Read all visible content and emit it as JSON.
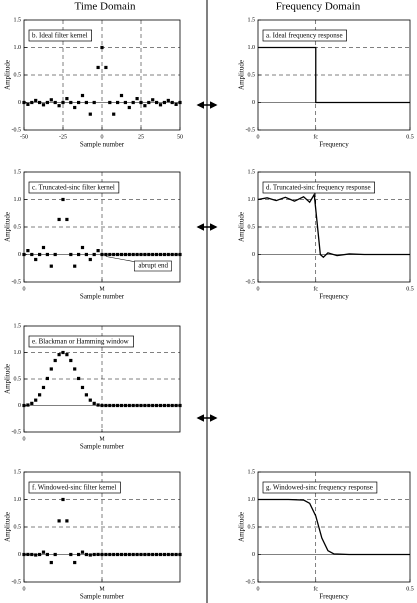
{
  "header": {
    "left": "Time Domain",
    "right": "Frequency Domain"
  },
  "chart_data": [
    {
      "type": "scatter",
      "title": "b. Ideal filter kernel",
      "xlabel": "Sample number",
      "ylabel": "Amplitude",
      "x": [
        -50,
        -47.5,
        -45,
        -42.5,
        -40,
        -37.5,
        -35,
        -32.5,
        -30,
        -27.5,
        -25,
        -22.5,
        -20,
        -17.5,
        -15,
        -12.5,
        -10,
        -7.5,
        -5,
        -2.5,
        0,
        2.5,
        5,
        7.5,
        10,
        12.5,
        15,
        17.5,
        20,
        22.5,
        25,
        27.5,
        30,
        32.5,
        35,
        37.5,
        40,
        42.5,
        45,
        47.5,
        50
      ],
      "values": [
        0,
        -0.034,
        0,
        0.037,
        0,
        -0.042,
        0,
        0.049,
        0,
        -0.058,
        0,
        0.071,
        0,
        -0.091,
        0,
        0.127,
        0,
        -0.212,
        0,
        0.637,
        1,
        0.637,
        0,
        -0.212,
        0,
        0.127,
        0,
        -0.091,
        0,
        0.071,
        0,
        -0.058,
        0,
        0.049,
        0,
        -0.042,
        0,
        0.037,
        0,
        -0.034,
        0
      ],
      "xlim": [
        -50,
        50
      ],
      "ylim": [
        -0.5,
        1.5
      ],
      "xticks": [
        -50,
        -25,
        0,
        25,
        50
      ],
      "yticks": [
        -0.5,
        0,
        0.5,
        {
          "value": 1,
          "label": "1.0"
        },
        1.5
      ],
      "grid": true,
      "color": "#000000"
    },
    {
      "type": "line",
      "title": "a. Ideal frequency response",
      "xlabel": "Frequency",
      "ylabel": "Amplitude",
      "x": [
        0,
        0.19,
        0.19,
        0.5
      ],
      "values": [
        1,
        1,
        0,
        0
      ],
      "xlim": [
        0,
        0.5
      ],
      "ylim": [
        -0.5,
        1.5
      ],
      "xticks": [
        0,
        {
          "value": 0.19,
          "label": "fc"
        },
        0.5
      ],
      "yticks": [
        -0.5,
        0,
        0.5,
        {
          "value": 1,
          "label": "1.0"
        },
        1.5
      ],
      "grid": true,
      "color": "#000000"
    },
    {
      "type": "scatter",
      "title": "c. Truncated-sinc filter kernel",
      "xlabel": "Sample number",
      "ylabel": "Amplitude",
      "annotation": "abrupt end",
      "x": [
        0,
        2.5,
        5,
        7.5,
        10,
        12.5,
        15,
        17.5,
        20,
        22.5,
        25,
        27.5,
        30,
        32.5,
        35,
        37.5,
        40,
        42.5,
        45,
        47.5,
        50,
        52.5,
        55,
        57.5,
        60,
        62.5,
        65,
        67.5,
        70,
        72.5,
        75,
        77.5,
        80,
        82.5,
        85,
        87.5,
        90,
        92.5,
        95,
        97.5,
        100
      ],
      "values": [
        0,
        0.071,
        0,
        -0.091,
        0,
        0.127,
        0,
        -0.212,
        0,
        0.637,
        1,
        0.637,
        0,
        -0.212,
        0,
        0.127,
        0,
        -0.091,
        0,
        0.071,
        0,
        0,
        0,
        0,
        0,
        0,
        0,
        0,
        0,
        0,
        0,
        0,
        0,
        0,
        0,
        0,
        0,
        0,
        0,
        0,
        0
      ],
      "xlim": [
        0,
        100
      ],
      "ylim": [
        -0.5,
        1.5
      ],
      "xticks": [
        0,
        {
          "value": 50,
          "label": "M"
        }
      ],
      "yticks": [
        -0.5,
        0,
        0.5,
        {
          "value": 1,
          "label": "1.0"
        },
        1.5
      ],
      "grid": true,
      "color": "#000000"
    },
    {
      "type": "line",
      "title": "d. Truncated-sinc frequency response",
      "xlabel": "Frequency",
      "ylabel": "Amplitude",
      "x": [
        0,
        0.03,
        0.06,
        0.09,
        0.12,
        0.15,
        0.17,
        0.185,
        0.195,
        0.205,
        0.215,
        0.23,
        0.26,
        0.3,
        0.35,
        0.4,
        0.45,
        0.5
      ],
      "values": [
        1,
        1.03,
        0.98,
        1.04,
        0.97,
        1.05,
        0.95,
        1.09,
        0.55,
        0,
        -0.05,
        0.03,
        -0.02,
        0.01,
        0,
        0,
        0,
        0
      ],
      "xlim": [
        0,
        0.5
      ],
      "ylim": [
        -0.5,
        1.5
      ],
      "xticks": [
        0,
        {
          "value": 0.19,
          "label": "fc"
        },
        0.5
      ],
      "yticks": [
        -0.5,
        0,
        0.5,
        {
          "value": 1,
          "label": "1.0"
        },
        1.5
      ],
      "grid": true,
      "color": "#000000"
    },
    {
      "type": "scatter",
      "title": "e. Blackman or Hamming window",
      "xlabel": "Sample number",
      "ylabel": "Amplitude",
      "x": [
        0,
        2.5,
        5,
        7.5,
        10,
        12.5,
        15,
        17.5,
        20,
        22.5,
        25,
        27.5,
        30,
        32.5,
        35,
        37.5,
        40,
        42.5,
        45,
        47.5,
        50,
        52.5,
        55,
        57.5,
        60,
        62.5,
        65,
        67.5,
        70,
        72.5,
        75,
        77.5,
        80,
        82.5,
        85,
        87.5,
        90,
        92.5,
        95,
        97.5,
        100
      ],
      "values": [
        0,
        0.009,
        0.04,
        0.101,
        0.201,
        0.34,
        0.51,
        0.689,
        0.849,
        0.96,
        1,
        0.96,
        0.849,
        0.689,
        0.51,
        0.34,
        0.201,
        0.101,
        0.04,
        0.009,
        0,
        0,
        0,
        0,
        0,
        0,
        0,
        0,
        0,
        0,
        0,
        0,
        0,
        0,
        0,
        0,
        0,
        0,
        0,
        0,
        0
      ],
      "xlim": [
        0,
        100
      ],
      "ylim": [
        -0.5,
        1.5
      ],
      "xticks": [
        0,
        {
          "value": 50,
          "label": "M"
        }
      ],
      "yticks": [
        -0.5,
        0,
        0.5,
        {
          "value": 1,
          "label": "1.0"
        },
        1.5
      ],
      "grid": true,
      "color": "#000000"
    },
    {
      "type": "scatter",
      "title": "f. Windowed-sinc filter kernel",
      "xlabel": "Sample number",
      "ylabel": "Amplitude",
      "x": [
        0,
        2.5,
        5,
        7.5,
        10,
        12.5,
        15,
        17.5,
        20,
        22.5,
        25,
        27.5,
        30,
        32.5,
        35,
        37.5,
        40,
        42.5,
        45,
        47.5,
        50,
        52.5,
        55,
        57.5,
        60,
        62.5,
        65,
        67.5,
        70,
        72.5,
        75,
        77.5,
        80,
        82.5,
        85,
        87.5,
        90,
        92.5,
        95,
        97.5,
        100
      ],
      "values": [
        0,
        0.001,
        0,
        -0.009,
        0,
        0.043,
        0,
        -0.146,
        0,
        0.611,
        1,
        0.611,
        0,
        -0.146,
        0,
        0.043,
        0,
        -0.009,
        0,
        0.001,
        0,
        0,
        0,
        0,
        0,
        0,
        0,
        0,
        0,
        0,
        0,
        0,
        0,
        0,
        0,
        0,
        0,
        0,
        0,
        0,
        0
      ],
      "xlim": [
        0,
        100
      ],
      "ylim": [
        -0.5,
        1.5
      ],
      "xticks": [
        0,
        {
          "value": 50,
          "label": "M"
        }
      ],
      "yticks": [
        -0.5,
        0,
        0.5,
        {
          "value": 1,
          "label": "1.0"
        },
        1.5
      ],
      "grid": true,
      "color": "#000000"
    },
    {
      "type": "line",
      "title": "g. Windowed-sinc frequency response",
      "xlabel": "Frequency",
      "ylabel": "Amplitude",
      "x": [
        0,
        0.05,
        0.1,
        0.15,
        0.17,
        0.19,
        0.21,
        0.23,
        0.25,
        0.3,
        0.4,
        0.5
      ],
      "values": [
        1,
        1,
        1,
        0.99,
        0.93,
        0.7,
        0.3,
        0.07,
        0.01,
        0,
        0,
        0
      ],
      "xlim": [
        0,
        0.5
      ],
      "ylim": [
        -0.5,
        1.5
      ],
      "xticks": [
        0,
        {
          "value": 0.19,
          "label": "fc"
        },
        0.5
      ],
      "yticks": [
        -0.5,
        0,
        0.5,
        {
          "value": 1,
          "label": "1.0"
        },
        1.5
      ],
      "grid": true,
      "color": "#000000"
    }
  ]
}
